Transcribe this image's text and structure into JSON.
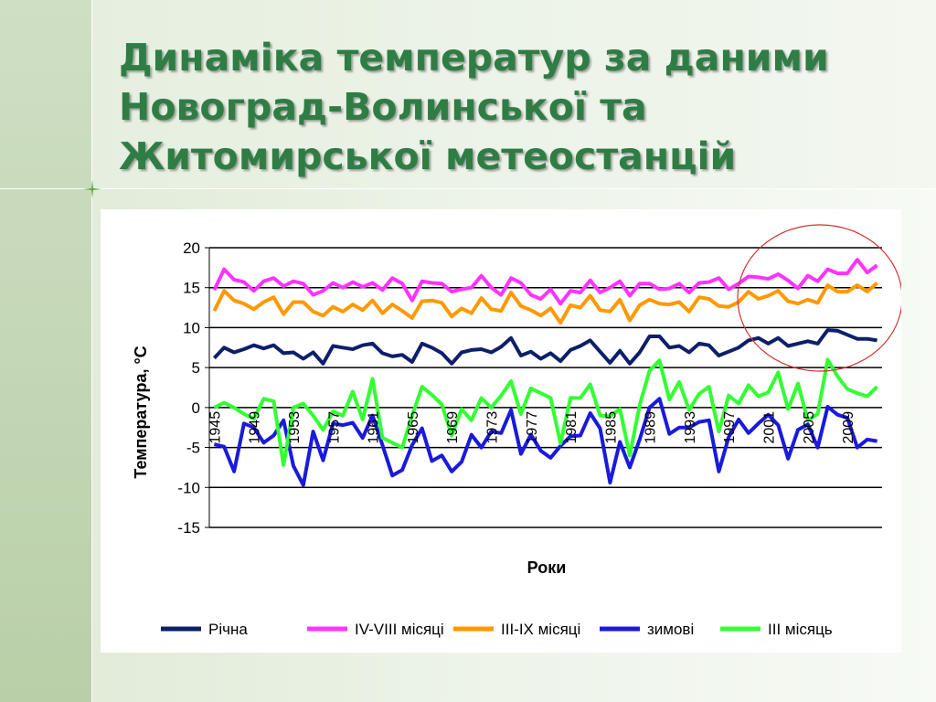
{
  "slide": {
    "title_lines": [
      "Динаміка температур за даними",
      "Новоград-Волинської та",
      "Житомирської метеостанцій"
    ]
  },
  "colors": {
    "title": "#2e7d45",
    "highlight_circle": "#d03030"
  },
  "chart_data": {
    "type": "line",
    "xlabel": "Роки",
    "ylabel": "Температура, °С",
    "ylim": [
      -15,
      20
    ],
    "yticks": [
      -15,
      -10,
      -5,
      0,
      5,
      10,
      15,
      20
    ],
    "x_tick_labels": [
      "1945",
      "1949",
      "1953",
      "1957",
      "1961",
      "1965",
      "1969",
      "1973",
      "1977",
      "1981",
      "1985",
      "1989",
      "1993",
      "1997",
      "2001",
      "2005",
      "2009"
    ],
    "x": [
      1945,
      1946,
      1947,
      1948,
      1949,
      1950,
      1951,
      1952,
      1953,
      1954,
      1955,
      1956,
      1957,
      1958,
      1959,
      1960,
      1961,
      1962,
      1963,
      1964,
      1965,
      1966,
      1967,
      1968,
      1969,
      1970,
      1971,
      1972,
      1973,
      1974,
      1975,
      1976,
      1977,
      1978,
      1979,
      1980,
      1981,
      1982,
      1983,
      1984,
      1985,
      1986,
      1987,
      1988,
      1989,
      1990,
      1991,
      1992,
      1993,
      1994,
      1995,
      1996,
      1997,
      1998,
      1999,
      2000,
      2001,
      2002,
      2003,
      2004,
      2005,
      2006,
      2007,
      2008,
      2009,
      2010,
      2011,
      2012
    ],
    "grid": "horizontal",
    "legend_position": "bottom",
    "series": [
      {
        "name": "Річна",
        "color": "#0d1f6b",
        "values": [
          6.2,
          7.5,
          6.9,
          7.3,
          7.8,
          7.4,
          7.8,
          6.8,
          6.9,
          6.1,
          6.9,
          5.5,
          7.7,
          7.5,
          7.3,
          7.8,
          8.0,
          6.8,
          6.4,
          6.6,
          5.7,
          8.0,
          7.5,
          6.8,
          5.5,
          6.9,
          7.2,
          7.3,
          6.9,
          7.6,
          8.7,
          6.5,
          7.0,
          6.1,
          6.8,
          5.8,
          7.2,
          7.7,
          8.4,
          7.0,
          5.6,
          7.1,
          5.5,
          6.9,
          8.9,
          8.9,
          7.5,
          7.7,
          6.9,
          8.0,
          7.8,
          6.5,
          7.0,
          7.5,
          8.4,
          8.7,
          8.0,
          8.7,
          7.7,
          8.0,
          8.3,
          8.0,
          9.7,
          9.6,
          9.1,
          8.6,
          8.6,
          8.4
        ]
      },
      {
        "name": "IV-VIII місяці",
        "color": "#ff33ff",
        "values": [
          14.7,
          17.3,
          16.0,
          15.7,
          14.6,
          15.8,
          16.2,
          15.2,
          15.8,
          15.5,
          14.1,
          14.6,
          15.6,
          15.0,
          15.7,
          15.1,
          15.6,
          14.7,
          16.2,
          15.5,
          13.4,
          15.8,
          15.6,
          15.5,
          14.5,
          14.8,
          15.0,
          16.5,
          15.0,
          14.1,
          16.2,
          15.6,
          14.1,
          13.6,
          14.8,
          13.0,
          14.6,
          14.4,
          15.9,
          14.4,
          15.0,
          15.8,
          14.0,
          15.5,
          15.5,
          14.8,
          14.9,
          15.5,
          14.4,
          15.6,
          15.7,
          16.2,
          14.8,
          15.5,
          16.4,
          16.3,
          16.1,
          16.7,
          15.9,
          14.9,
          16.5,
          15.8,
          17.3,
          16.8,
          16.8,
          18.5,
          16.9,
          17.8
        ]
      },
      {
        "name": "III-IX місяці",
        "color": "#ff9900",
        "values": [
          12.1,
          14.6,
          13.4,
          13.0,
          12.3,
          13.2,
          13.8,
          11.7,
          13.2,
          13.2,
          12.0,
          11.5,
          12.6,
          12.0,
          12.9,
          12.2,
          13.4,
          11.8,
          12.9,
          12.1,
          11.2,
          13.3,
          13.4,
          13.1,
          11.4,
          12.4,
          11.8,
          13.7,
          12.3,
          12.1,
          14.4,
          12.7,
          12.2,
          11.5,
          12.4,
          10.6,
          12.8,
          12.5,
          14.0,
          12.2,
          12.0,
          13.5,
          10.9,
          12.8,
          13.5,
          13.0,
          12.9,
          13.2,
          12.0,
          13.8,
          13.6,
          12.7,
          12.6,
          13.2,
          14.5,
          13.6,
          14.0,
          14.6,
          13.3,
          13.0,
          13.5,
          13.1,
          15.3,
          14.5,
          14.5,
          15.3,
          14.5,
          15.6
        ]
      },
      {
        "name": "зимові",
        "color": "#1a1adc",
        "values": [
          -4.6,
          -4.9,
          -8.0,
          -2.0,
          -2.5,
          -4.4,
          -3.5,
          -1.6,
          -7.3,
          -9.7,
          -3.0,
          -6.6,
          -2.0,
          -2.2,
          -1.9,
          -3.8,
          -1.0,
          -4.7,
          -8.5,
          -7.8,
          -4.7,
          -2.6,
          -6.7,
          -6.0,
          -8.0,
          -6.8,
          -3.4,
          -5.0,
          -3.0,
          -3.2,
          -0.3,
          -5.8,
          -3.4,
          -5.4,
          -6.3,
          -4.8,
          -3.6,
          -3.5,
          -0.7,
          -2.6,
          -9.4,
          -4.3,
          -7.5,
          -4.0,
          0.0,
          1.1,
          -3.3,
          -2.5,
          -2.5,
          -1.8,
          -1.6,
          -8.0,
          -3.7,
          -1.5,
          -3.2,
          -2.0,
          -0.9,
          -2.2,
          -6.4,
          -2.8,
          -2.1,
          -5.0,
          0.1,
          -0.9,
          -1.3,
          -5.0,
          -4.0,
          -4.2
        ]
      },
      {
        "name": "III місяць",
        "color": "#33ff33",
        "values": [
          0.0,
          0.6,
          0.0,
          -0.8,
          -1.4,
          1.1,
          0.8,
          -7.2,
          0.0,
          0.5,
          -1.0,
          -2.8,
          -0.5,
          -1.0,
          2.0,
          -1.5,
          3.6,
          -3.8,
          -4.4,
          -5.0,
          -1.0,
          2.6,
          1.6,
          0.4,
          -3.5,
          -0.2,
          -1.6,
          1.2,
          0.0,
          1.5,
          3.3,
          -0.8,
          2.4,
          1.8,
          1.2,
          -4.5,
          1.2,
          1.2,
          2.9,
          -1.0,
          -1.1,
          -0.2,
          -6.0,
          0.3,
          4.6,
          5.9,
          1.0,
          3.2,
          -0.3,
          1.7,
          2.6,
          -3.0,
          1.5,
          0.5,
          2.8,
          1.4,
          1.9,
          4.4,
          -0.2,
          3.0,
          -1.6,
          -0.8,
          6.0,
          3.9,
          2.3,
          1.8,
          1.4,
          2.6
        ]
      }
    ]
  }
}
